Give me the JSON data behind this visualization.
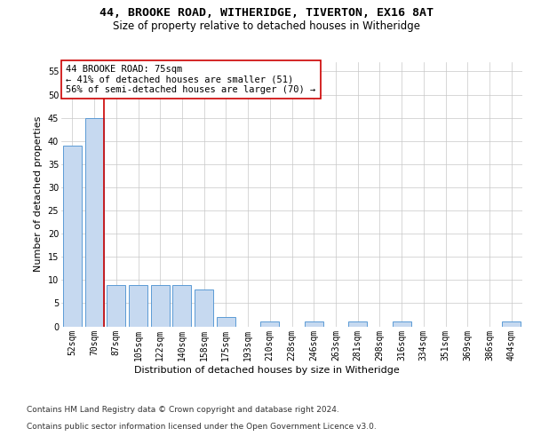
{
  "title1": "44, BROOKE ROAD, WITHERIDGE, TIVERTON, EX16 8AT",
  "title2": "Size of property relative to detached houses in Witheridge",
  "xlabel": "Distribution of detached houses by size in Witheridge",
  "ylabel": "Number of detached properties",
  "bar_labels": [
    "52sqm",
    "70sqm",
    "87sqm",
    "105sqm",
    "122sqm",
    "140sqm",
    "158sqm",
    "175sqm",
    "193sqm",
    "210sqm",
    "228sqm",
    "246sqm",
    "263sqm",
    "281sqm",
    "298sqm",
    "316sqm",
    "334sqm",
    "351sqm",
    "369sqm",
    "386sqm",
    "404sqm"
  ],
  "bar_values": [
    39,
    45,
    9,
    9,
    9,
    9,
    8,
    2,
    0,
    1,
    0,
    1,
    0,
    1,
    0,
    1,
    0,
    0,
    0,
    0,
    1
  ],
  "bar_color": "#c6d9f0",
  "bar_edge_color": "#5b9bd5",
  "vline_color": "#cc0000",
  "annotation_text_line1": "44 BROOKE ROAD: 75sqm",
  "annotation_text_line2": "← 41% of detached houses are smaller (51)",
  "annotation_text_line3": "56% of semi-detached houses are larger (70) →",
  "annotation_box_color": "#ffffff",
  "annotation_box_edge_color": "#cc0000",
  "ylim": [
    0,
    57
  ],
  "yticks": [
    0,
    5,
    10,
    15,
    20,
    25,
    30,
    35,
    40,
    45,
    50,
    55
  ],
  "grid_color": "#c8c8c8",
  "background_color": "#ffffff",
  "footer_line1": "Contains HM Land Registry data © Crown copyright and database right 2024.",
  "footer_line2": "Contains public sector information licensed under the Open Government Licence v3.0.",
  "title_fontsize": 9.5,
  "subtitle_fontsize": 8.5,
  "axis_label_fontsize": 8,
  "tick_fontsize": 7,
  "annotation_fontsize": 7.5,
  "footer_fontsize": 6.5
}
